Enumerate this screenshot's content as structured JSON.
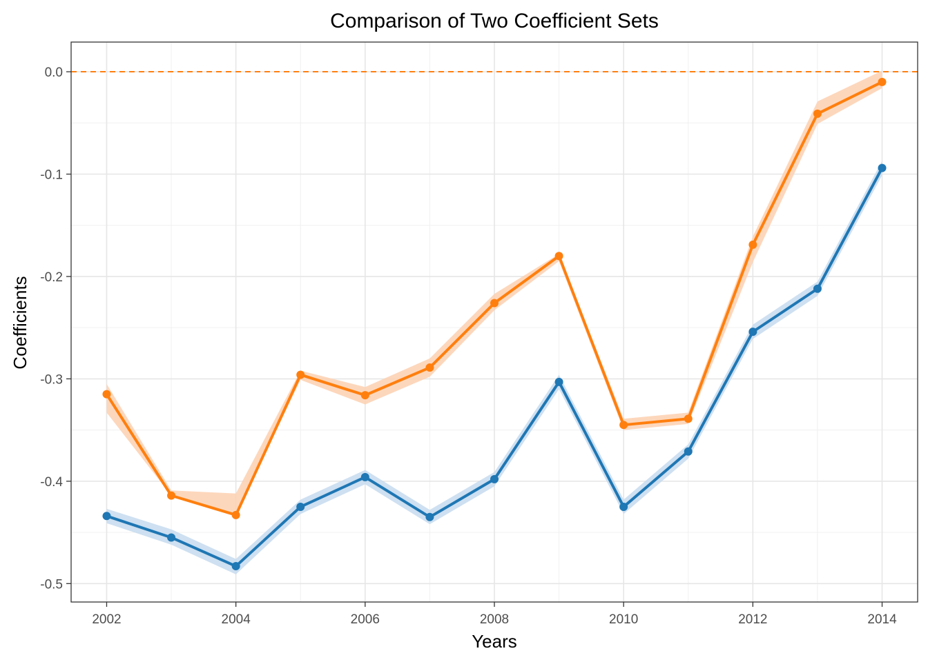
{
  "chart_data": {
    "type": "line",
    "title": "Comparison of Two Coefficient Sets",
    "xlabel": "Years",
    "ylabel": "Coefficients",
    "x": [
      2002,
      2003,
      2004,
      2005,
      2006,
      2007,
      2008,
      2009,
      2010,
      2011,
      2012,
      2013,
      2014
    ],
    "xlim": [
      2001.45,
      2014.55
    ],
    "ylim": [
      -0.518,
      0.029
    ],
    "x_ticks": [
      "2002",
      "2004",
      "2006",
      "2008",
      "2010",
      "2012",
      "2014"
    ],
    "y_ticks": [
      "0.0",
      "-0.1",
      "-0.2",
      "-0.3",
      "-0.4",
      "-0.5"
    ],
    "grid": true,
    "reference_line": {
      "y": 0.0,
      "style": "dashed",
      "color": "#ff7f0e"
    },
    "series": [
      {
        "color": "#ff7f0e",
        "band_color": "#fdd0b0",
        "values": [
          -0.315,
          -0.414,
          -0.433,
          -0.296,
          -0.316,
          -0.289,
          -0.226,
          -0.18,
          -0.345,
          -0.339,
          -0.169,
          -0.041,
          -0.01
        ],
        "lower": [
          -0.333,
          -0.414,
          -0.433,
          -0.301,
          -0.325,
          -0.298,
          -0.233,
          -0.185,
          -0.35,
          -0.344,
          -0.186,
          -0.051,
          -0.016
        ],
        "upper": [
          -0.305,
          -0.409,
          -0.412,
          -0.292,
          -0.308,
          -0.28,
          -0.217,
          -0.178,
          -0.339,
          -0.333,
          -0.161,
          -0.029,
          0.001
        ]
      },
      {
        "color": "#1f77b4",
        "band_color": "#c6dbef",
        "values": [
          -0.434,
          -0.455,
          -0.483,
          -0.425,
          -0.396,
          -0.435,
          -0.398,
          -0.303,
          -0.425,
          -0.371,
          -0.254,
          -0.212,
          -0.094
        ],
        "lower": [
          -0.441,
          -0.462,
          -0.491,
          -0.432,
          -0.403,
          -0.442,
          -0.405,
          -0.31,
          -0.432,
          -0.378,
          -0.261,
          -0.219,
          -0.101
        ],
        "upper": [
          -0.427,
          -0.447,
          -0.476,
          -0.418,
          -0.389,
          -0.428,
          -0.391,
          -0.296,
          -0.418,
          -0.364,
          -0.247,
          -0.205,
          -0.087
        ]
      }
    ]
  }
}
